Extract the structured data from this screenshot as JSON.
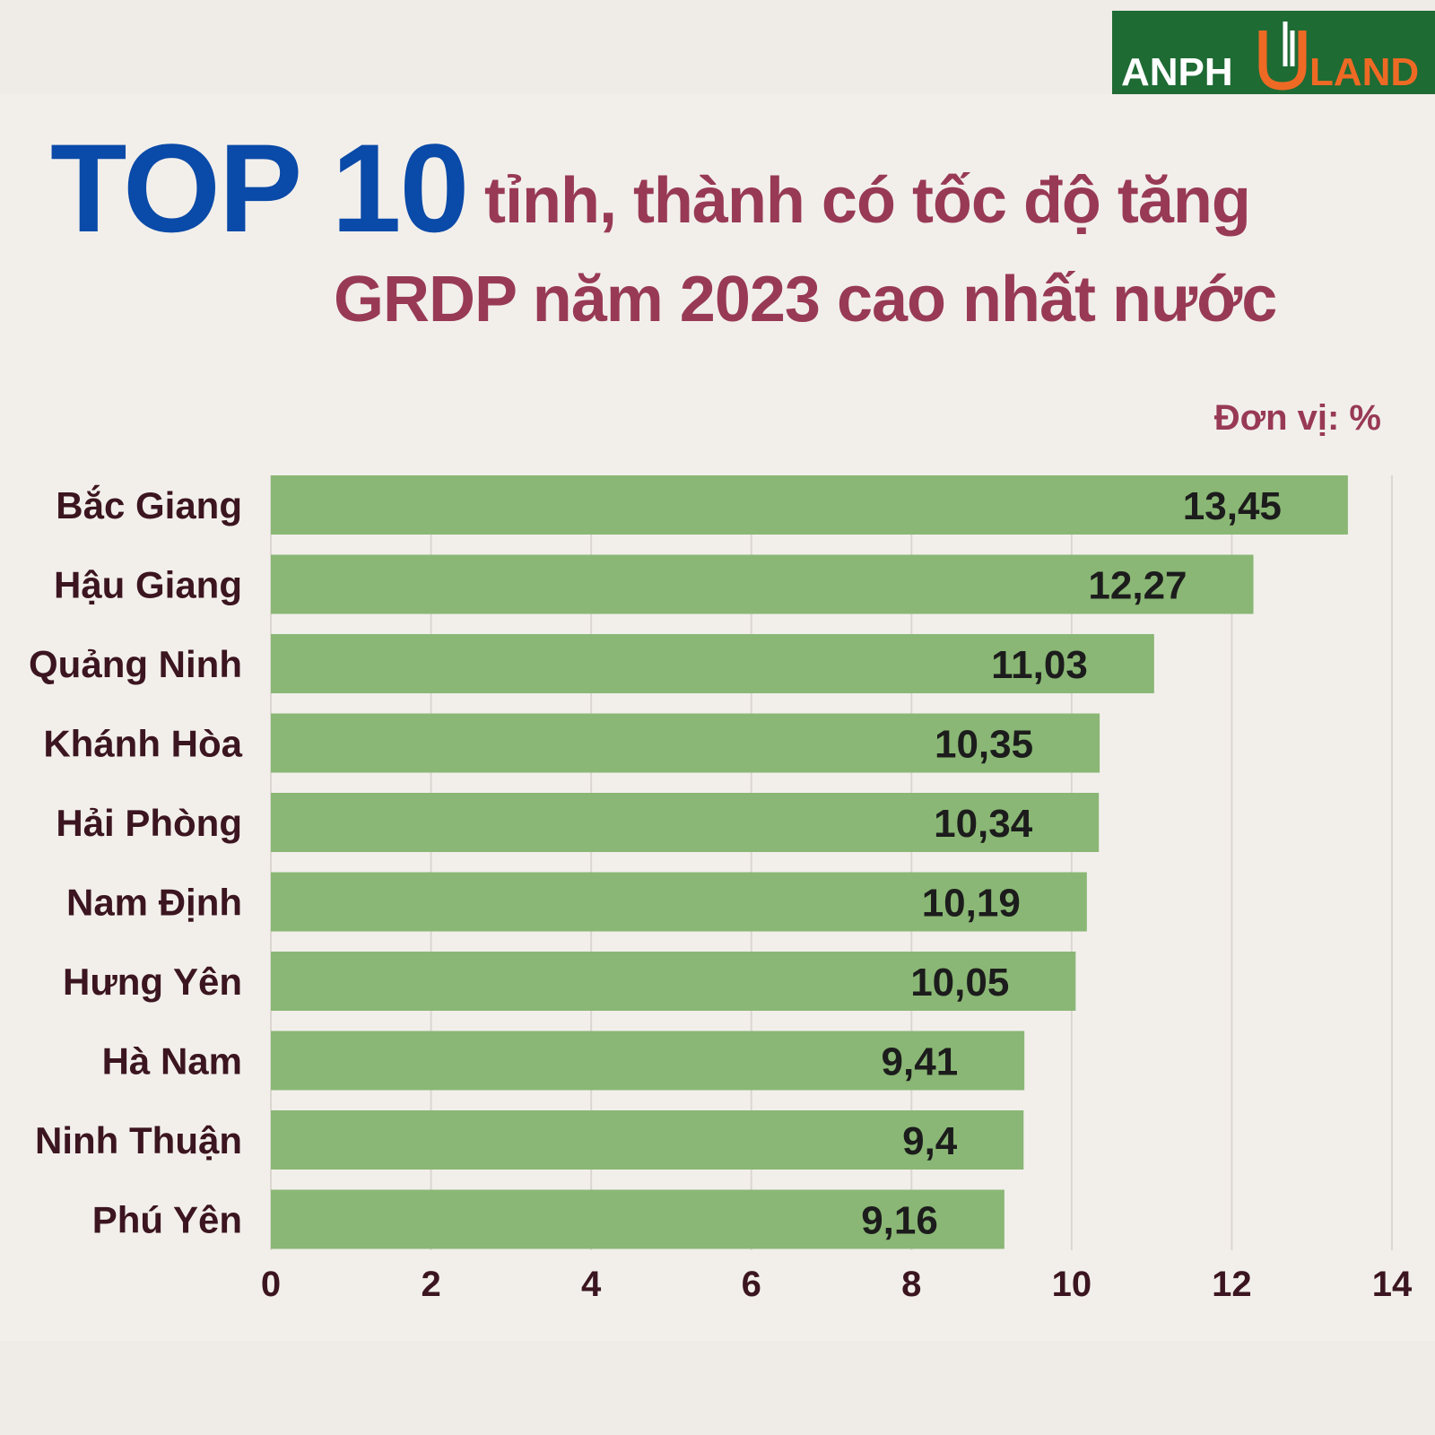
{
  "logo": {
    "text_left": "ANPH",
    "text_right": "LAND"
  },
  "title": {
    "top": "TOP 10",
    "line1": "tỉnh, thành có tốc độ tăng",
    "line2": "GRDP năm 2023 cao nhất nước"
  },
  "unit_label": "Đơn vị: %",
  "chart_data": {
    "type": "bar",
    "orientation": "horizontal",
    "categories": [
      "Bắc Giang",
      "Hậu Giang",
      "Quảng Ninh",
      "Khánh Hòa",
      "Hải Phòng",
      "Nam Định",
      "Hưng Yên",
      "Hà Nam",
      "Ninh Thuận",
      "Phú Yên"
    ],
    "values": [
      13.45,
      12.27,
      11.03,
      10.35,
      10.34,
      10.19,
      10.05,
      9.41,
      9.4,
      9.16
    ],
    "value_labels": [
      "13,45",
      "12,27",
      "11,03",
      "10,35",
      "10,34",
      "10,19",
      "10,05",
      "9,41",
      "9,4",
      "9,16"
    ],
    "xlim": [
      0,
      14
    ],
    "xticks": [
      "0",
      "2",
      "4",
      "6",
      "8",
      "10",
      "12",
      "14"
    ],
    "grid": true,
    "bar_color": "#8ab775",
    "label_color": "#3b1520",
    "value_color": "#1c1c1c"
  }
}
